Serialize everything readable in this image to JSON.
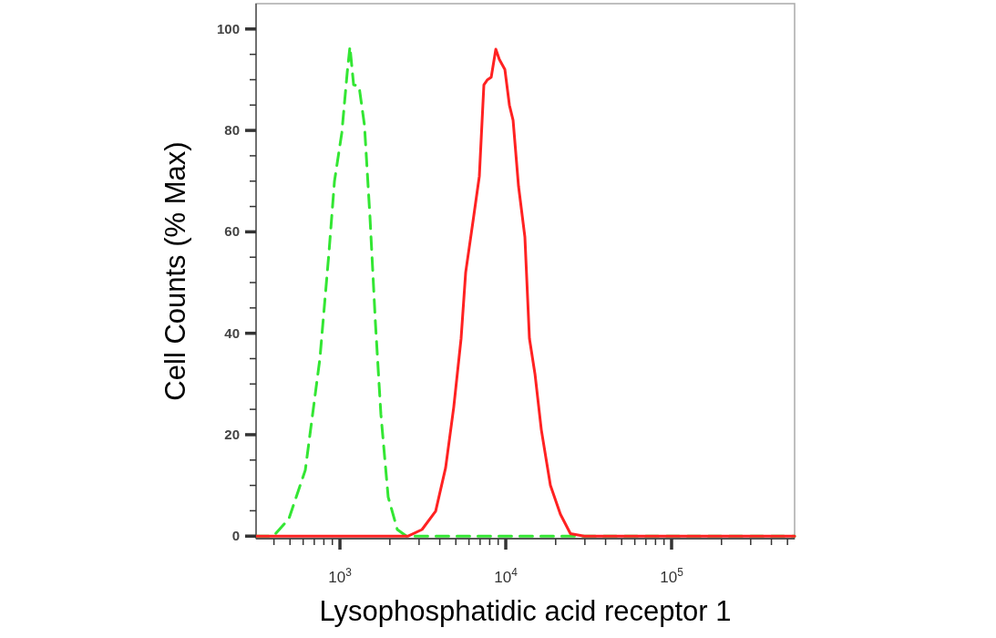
{
  "chart_data": {
    "type": "line",
    "xlabel": "Lysophosphatidic acid receptor 1",
    "ylabel": "Cell Counts (% Max)",
    "log": "x",
    "xlim": [
      312,
      552000
    ],
    "ylim": [
      -0.5,
      105
    ],
    "xticks": [
      {
        "value": 400,
        "label": null
      },
      {
        "value": 500,
        "label": null
      },
      {
        "value": 600,
        "label": null
      },
      {
        "value": 700,
        "label": null
      },
      {
        "value": 800,
        "label": null
      },
      {
        "value": 900,
        "label": null
      },
      {
        "value": 1000,
        "label": "10$^{3}$"
      },
      {
        "value": 2000,
        "label": null
      },
      {
        "value": 3000,
        "label": null
      },
      {
        "value": 4000,
        "label": null
      },
      {
        "value": 5000,
        "label": null
      },
      {
        "value": 6000,
        "label": null
      },
      {
        "value": 7000,
        "label": null
      },
      {
        "value": 8000,
        "label": null
      },
      {
        "value": 9000,
        "label": null
      },
      {
        "value": 10000,
        "label": "10$^{4}$"
      },
      {
        "value": 20000,
        "label": null
      },
      {
        "value": 30000,
        "label": null
      },
      {
        "value": 40000,
        "label": null
      },
      {
        "value": 50000,
        "label": null
      },
      {
        "value": 60000,
        "label": null
      },
      {
        "value": 70000,
        "label": null
      },
      {
        "value": 80000,
        "label": null
      },
      {
        "value": 90000,
        "label": null
      },
      {
        "value": 100000,
        "label": "10$^{5}$"
      },
      {
        "value": 200000,
        "label": null
      },
      {
        "value": 300000,
        "label": null
      },
      {
        "value": 400000,
        "label": null
      },
      {
        "value": 500000,
        "label": null
      }
    ],
    "yticks": [
      0,
      {
        "value": 5,
        "label": null
      },
      {
        "value": 10,
        "label": null
      },
      {
        "value": 15,
        "label": null
      },
      20,
      {
        "value": 25,
        "label": null
      },
      {
        "value": 30,
        "label": null
      },
      {
        "value": 35,
        "label": null
      },
      40,
      {
        "value": 45,
        "label": null
      },
      {
        "value": 50,
        "label": null
      },
      {
        "value": 55,
        "label": null
      },
      60,
      {
        "value": 65,
        "label": null
      },
      {
        "value": 70,
        "label": null
      },
      {
        "value": 75,
        "label": null
      },
      80,
      {
        "value": 85,
        "label": null
      },
      {
        "value": 90,
        "label": null
      },
      {
        "value": 95,
        "label": null
      },
      100
    ],
    "grid": false,
    "marker": "none",
    "series": [
      {
        "color": "#33e633",
        "line_style": "dashed",
        "x": [
          312,
          397,
          492,
          618,
          757,
          859,
          927,
          1026,
          1107,
          1149,
          1209,
          1304,
          1406,
          1517,
          1637,
          1766,
          1954,
          2218,
          2518,
          552000
        ],
        "values": [
          0,
          0,
          3.4,
          13,
          35,
          56,
          70,
          79.5,
          91.5,
          96.5,
          89,
          88.7,
          81,
          63,
          42,
          24,
          7.7,
          1.3,
          0,
          0
        ]
      },
      {
        "color": "#ff2222",
        "line_style": "solid",
        "x": [
          312,
          2582,
          3126,
          3777,
          4339,
          4859,
          5379,
          5730,
          6340,
          6930,
          7380,
          7760,
          8170,
          8710,
          9150,
          9880,
          10520,
          11070,
          11940,
          13040,
          13890,
          15000,
          16380,
          18590,
          21360,
          24550,
          29700,
          552000
        ],
        "values": [
          0,
          0,
          1.3,
          4.9,
          13.5,
          25.5,
          39,
          52,
          62,
          71,
          89,
          90,
          90.5,
          96,
          94,
          92,
          85,
          82,
          69,
          59,
          39,
          32,
          21,
          10,
          4.3,
          0.5,
          0,
          0
        ]
      }
    ]
  }
}
